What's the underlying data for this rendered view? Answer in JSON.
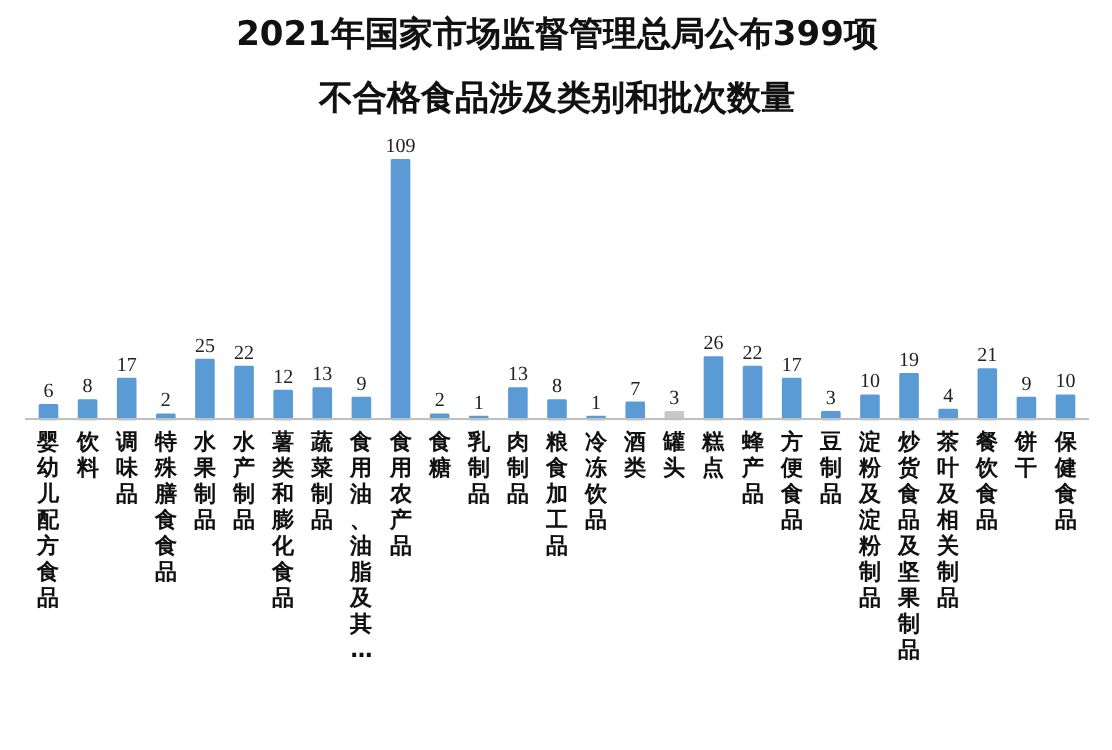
{
  "chart_data": {
    "type": "bar",
    "title": "2021年国家市场监督管理总局公布399项",
    "subtitle": "不合格食品涉及类别和批次数量",
    "categories": [
      "婴幼儿配方食品",
      "饮料",
      "调味品",
      "特殊膳食食品",
      "水果制品",
      "水产制品",
      "薯类和膨化食品",
      "蔬菜制品",
      "食用油、油脂及其…",
      "食用农产品",
      "食糖",
      "乳制品",
      "肉制品",
      "粮食加工品",
      "冷冻饮品",
      "酒类",
      "罐头",
      "糕点",
      "蜂产品",
      "方便食品",
      "豆制品",
      "淀粉及淀粉制品",
      "炒货食品及坚果制品",
      "茶叶及相关制品",
      "餐饮食品",
      "饼干",
      "保健食品"
    ],
    "values": [
      6,
      8,
      17,
      2,
      25,
      22,
      12,
      13,
      9,
      109,
      2,
      1,
      13,
      8,
      1,
      7,
      3,
      26,
      22,
      17,
      3,
      10,
      19,
      4,
      21,
      9,
      10
    ],
    "colors": [
      "#5b9bd5",
      "#5b9bd5",
      "#5b9bd5",
      "#5b9bd5",
      "#5b9bd5",
      "#5b9bd5",
      "#5b9bd5",
      "#5b9bd5",
      "#5b9bd5",
      "#5b9bd5",
      "#5b9bd5",
      "#5b9bd5",
      "#5b9bd5",
      "#5b9bd5",
      "#5b9bd5",
      "#5b9bd5",
      "#c8c8c8",
      "#5b9bd5",
      "#5b9bd5",
      "#5b9bd5",
      "#5b9bd5",
      "#5b9bd5",
      "#5b9bd5",
      "#5b9bd5",
      "#5b9bd5",
      "#5b9bd5",
      "#5b9bd5"
    ],
    "data_labels": true,
    "grid": false
  }
}
